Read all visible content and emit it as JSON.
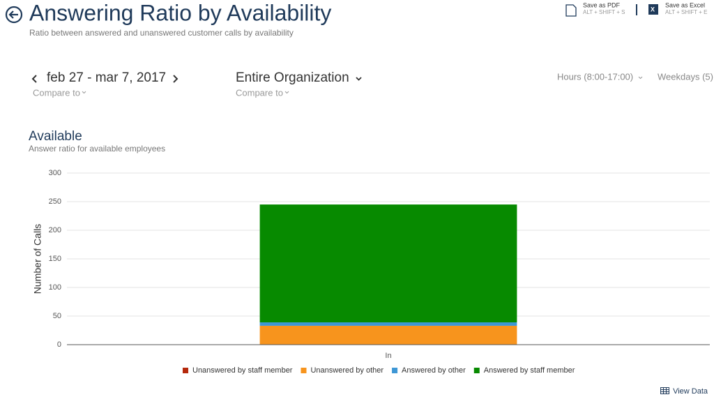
{
  "header": {
    "title": "Answering Ratio by Availability",
    "subtitle": "Ratio between answered and unanswered customer calls by availability",
    "actions": [
      {
        "label": "Save as PDF",
        "shortcut": "ALT + SHIFT + S"
      },
      {
        "label": "Save as Excel",
        "shortcut": "ALT + SHIFT + E"
      }
    ]
  },
  "filters": {
    "date_range": "feb 27 - mar 7, 2017",
    "date_compare": "Compare to",
    "scope": "Entire Organization",
    "scope_compare": "Compare to",
    "hours": "Hours (8:00-17:00)",
    "days": "Weekdays (5)"
  },
  "chart_data": {
    "type": "bar",
    "stacked": true,
    "title": "Available",
    "subtitle": "Answer ratio for available employees",
    "y_label": "Number of Calls",
    "categories": [
      "In"
    ],
    "series": [
      {
        "name": "Unanswered by staff member",
        "color": "#b5290c",
        "values": [
          0
        ]
      },
      {
        "name": "Unanswered by other",
        "color": "#f7941d",
        "values": [
          33
        ]
      },
      {
        "name": "Answered by other",
        "color": "#3e97d5",
        "values": [
          6
        ]
      },
      {
        "name": "Answered by staff member",
        "color": "#078a00",
        "values": [
          206
        ]
      }
    ],
    "ylim": [
      0,
      300
    ],
    "yticks": [
      0,
      50,
      100,
      150,
      200,
      250,
      300
    ],
    "grid": true
  },
  "footer": {
    "view_data": "View Data"
  }
}
